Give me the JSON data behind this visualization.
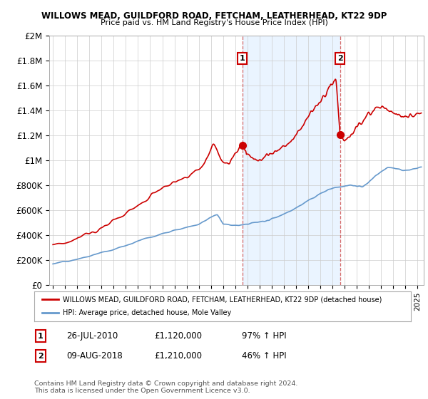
{
  "title1": "WILLOWS MEAD, GUILDFORD ROAD, FETCHAM, LEATHERHEAD, KT22 9DP",
  "title2": "Price paid vs. HM Land Registry's House Price Index (HPI)",
  "ylabel_ticks": [
    "£0",
    "£200K",
    "£400K",
    "£600K",
    "£800K",
    "£1M",
    "£1.2M",
    "£1.4M",
    "£1.6M",
    "£1.8M",
    "£2M"
  ],
  "ytick_values": [
    0,
    200000,
    400000,
    600000,
    800000,
    1000000,
    1200000,
    1400000,
    1600000,
    1800000,
    2000000
  ],
  "ylim": [
    0,
    2000000
  ],
  "red_color": "#cc0000",
  "blue_color": "#6699cc",
  "shade_color": "#ddeeff",
  "annotation1": {
    "label": "1",
    "date": "26-JUL-2010",
    "price": "£1,120,000",
    "hpi": "97% ↑ HPI",
    "x_year": 2010.57,
    "y_val": 1120000
  },
  "annotation2": {
    "label": "2",
    "date": "09-AUG-2018",
    "price": "£1,210,000",
    "hpi": "46% ↑ HPI",
    "x_year": 2018.61,
    "y_val": 1210000
  },
  "legend_red": "WILLOWS MEAD, GUILDFORD ROAD, FETCHAM, LEATHERHEAD, KT22 9DP (detached house)",
  "legend_blue": "HPI: Average price, detached house, Mole Valley",
  "footnote": "Contains HM Land Registry data © Crown copyright and database right 2024.\nThis data is licensed under the Open Government Licence v3.0.",
  "background_color": "#ffffff",
  "grid_color": "#cccccc",
  "xlim_start": 1994.7,
  "xlim_end": 2025.5
}
